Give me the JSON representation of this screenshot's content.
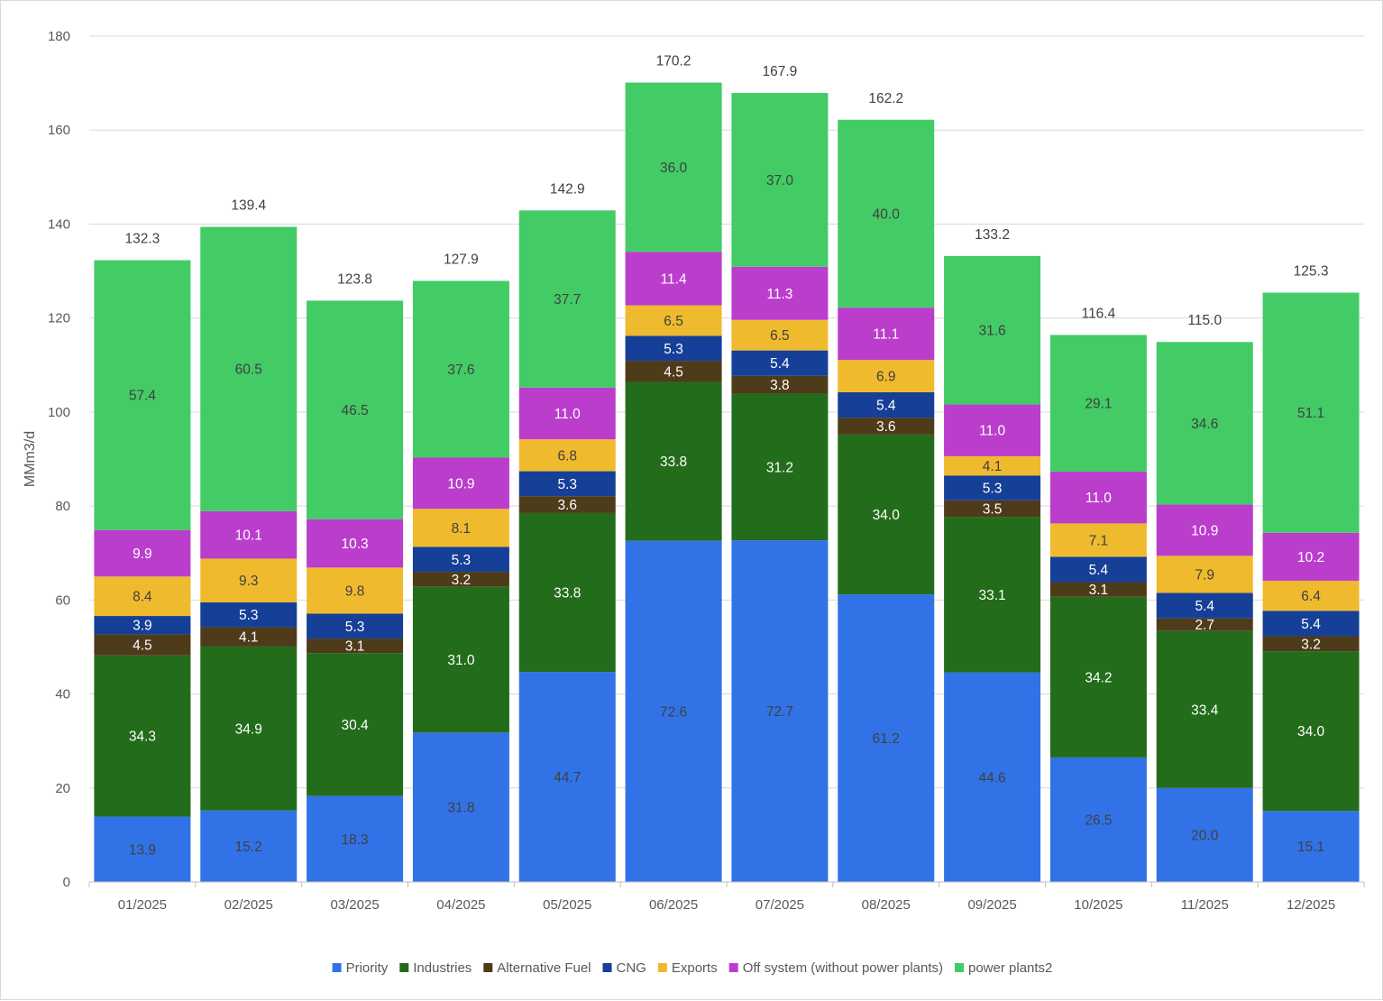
{
  "chart_data": {
    "type": "bar",
    "stacked": true,
    "ylabel": "MMm3/d",
    "ylim": [
      0,
      180
    ],
    "yticks": [
      0,
      20,
      40,
      60,
      80,
      100,
      120,
      140,
      160,
      180
    ],
    "grid": true,
    "legend_position": "bottom",
    "categories": [
      "01/2025",
      "02/2025",
      "03/2025",
      "04/2025",
      "05/2025",
      "06/2025",
      "07/2025",
      "08/2025",
      "09/2025",
      "10/2025",
      "11/2025",
      "12/2025"
    ],
    "series": [
      {
        "name": "Priority",
        "color": "#3173e6",
        "label_color": "#404040",
        "values": [
          13.9,
          15.2,
          18.3,
          31.8,
          44.7,
          72.6,
          72.7,
          61.2,
          44.6,
          26.5,
          20.0,
          15.1
        ]
      },
      {
        "name": "Industries",
        "color": "#236c1b",
        "label_color": "#ffffff",
        "values": [
          34.3,
          34.9,
          30.4,
          31.0,
          33.8,
          33.8,
          31.2,
          34.0,
          33.1,
          34.2,
          33.4,
          34.0
        ]
      },
      {
        "name": "Alternative Fuel",
        "color": "#4e3b1a",
        "label_color": "#ffffff",
        "values": [
          4.5,
          4.1,
          3.1,
          3.2,
          3.6,
          4.5,
          3.8,
          3.6,
          3.5,
          3.1,
          2.7,
          3.2
        ]
      },
      {
        "name": "CNG",
        "color": "#163f97",
        "label_color": "#ffffff",
        "values": [
          3.9,
          5.3,
          5.3,
          5.3,
          5.3,
          5.3,
          5.4,
          5.4,
          5.3,
          5.4,
          5.4,
          5.4
        ]
      },
      {
        "name": "Exports",
        "color": "#f0ba2e",
        "label_color": "#404040",
        "values": [
          8.4,
          9.3,
          9.8,
          8.1,
          6.8,
          6.5,
          6.5,
          6.9,
          4.1,
          7.1,
          7.9,
          6.4
        ]
      },
      {
        "name": "Off system (without power plants)",
        "color": "#bb3dcc",
        "label_color": "#ffffff",
        "values": [
          9.9,
          10.1,
          10.3,
          10.9,
          11.0,
          11.4,
          11.3,
          11.1,
          11.0,
          11.0,
          10.9,
          10.2
        ]
      },
      {
        "name": "power plants2",
        "color": "#43cb66",
        "label_color": "#404040",
        "values": [
          57.4,
          60.5,
          46.5,
          37.6,
          37.7,
          36.0,
          37.0,
          40.0,
          31.6,
          29.1,
          34.6,
          51.1
        ]
      }
    ],
    "totals": [
      "132.3",
      "139.4",
      "123.8",
      "127.9",
      "142.9",
      "170.2",
      "167.9",
      "162.2",
      "133.2",
      "116.4",
      "115.0",
      "125.3"
    ]
  }
}
